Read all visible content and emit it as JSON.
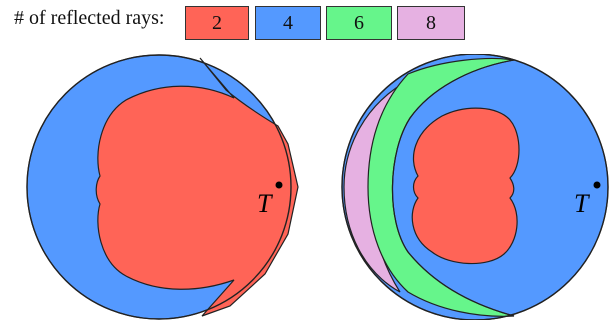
{
  "legend": {
    "title": "# of reflected rays:",
    "items": [
      {
        "label": "2",
        "color": "#ff6457"
      },
      {
        "label": "4",
        "color": "#5499ff"
      },
      {
        "label": "6",
        "color": "#66f58b"
      },
      {
        "label": "8",
        "color": "#e6b1e2"
      }
    ]
  },
  "diagrams": {
    "left": {
      "target_label": "T"
    },
    "right": {
      "target_label": "T"
    }
  }
}
